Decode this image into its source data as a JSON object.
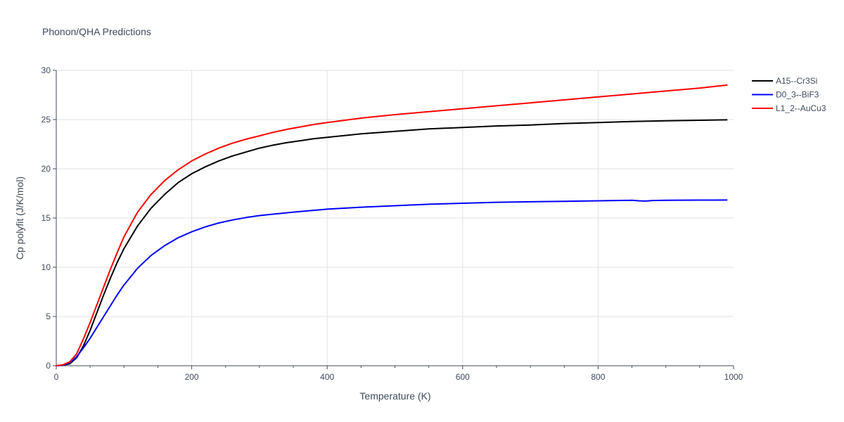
{
  "chart_data": {
    "type": "line",
    "title": "Phonon/QHA Predictions",
    "xlabel": "Temperature (K)",
    "ylabel": "Cp polyfit (J/K/mol)",
    "xlim": [
      0,
      1000
    ],
    "ylim": [
      0,
      30
    ],
    "xticks": [
      0,
      200,
      400,
      600,
      800,
      1000
    ],
    "yticks": [
      0,
      5,
      10,
      15,
      20,
      25,
      30
    ],
    "grid": true,
    "legend_position": "top-right",
    "series": [
      {
        "name": "A15--Cr3Si",
        "color": "#000000",
        "x": [
          0,
          10,
          20,
          30,
          40,
          50,
          60,
          70,
          80,
          90,
          100,
          120,
          140,
          160,
          180,
          200,
          220,
          240,
          260,
          280,
          300,
          320,
          340,
          360,
          380,
          400,
          450,
          500,
          550,
          600,
          650,
          700,
          750,
          800,
          850,
          900,
          950,
          990
        ],
        "y": [
          0,
          0.05,
          0.2,
          0.8,
          2.0,
          3.6,
          5.4,
          7.2,
          8.9,
          10.5,
          11.9,
          14.2,
          16.0,
          17.4,
          18.6,
          19.5,
          20.2,
          20.8,
          21.3,
          21.7,
          22.1,
          22.4,
          22.65,
          22.85,
          23.05,
          23.2,
          23.55,
          23.8,
          24.05,
          24.2,
          24.35,
          24.45,
          24.6,
          24.7,
          24.8,
          24.88,
          24.93,
          24.97
        ]
      },
      {
        "name": "D0_3--BiF3",
        "color": "#0000ff",
        "x": [
          0,
          10,
          20,
          30,
          40,
          50,
          60,
          70,
          80,
          90,
          100,
          120,
          140,
          160,
          180,
          200,
          220,
          240,
          260,
          280,
          300,
          350,
          400,
          450,
          500,
          550,
          600,
          650,
          700,
          750,
          800,
          850,
          860,
          870,
          880,
          900,
          950,
          990
        ],
        "y": [
          0,
          0.05,
          0.3,
          0.9,
          1.8,
          2.8,
          3.9,
          5.0,
          6.1,
          7.2,
          8.2,
          9.9,
          11.2,
          12.2,
          13.0,
          13.6,
          14.1,
          14.5,
          14.8,
          15.05,
          15.25,
          15.6,
          15.9,
          16.1,
          16.25,
          16.4,
          16.5,
          16.6,
          16.65,
          16.7,
          16.75,
          16.8,
          16.75,
          16.72,
          16.78,
          16.8,
          16.82,
          16.83
        ]
      },
      {
        "name": "L1_2--AuCu3",
        "color": "#ff0000",
        "x": [
          0,
          10,
          20,
          30,
          40,
          50,
          60,
          70,
          80,
          90,
          100,
          120,
          140,
          160,
          180,
          200,
          220,
          240,
          260,
          280,
          300,
          320,
          340,
          360,
          380,
          400,
          450,
          500,
          550,
          600,
          650,
          700,
          750,
          800,
          850,
          900,
          950,
          990
        ],
        "y": [
          0,
          0.1,
          0.4,
          1.2,
          2.7,
          4.4,
          6.2,
          8.0,
          9.8,
          11.5,
          13.1,
          15.6,
          17.4,
          18.8,
          19.9,
          20.8,
          21.5,
          22.1,
          22.6,
          23.0,
          23.35,
          23.7,
          24.0,
          24.25,
          24.5,
          24.7,
          25.15,
          25.5,
          25.8,
          26.1,
          26.4,
          26.7,
          27.0,
          27.3,
          27.6,
          27.9,
          28.2,
          28.5
        ]
      }
    ]
  }
}
